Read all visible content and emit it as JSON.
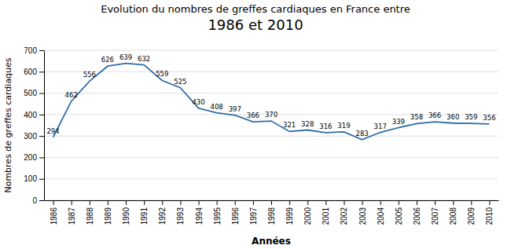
{
  "chart_data": {
    "type": "line",
    "title": "Evolution du nombres de greffes cardiaques en France entre",
    "subtitle": "1986 et 2010",
    "x_label": "Années",
    "y_label": "Nombres de greffes cardiaques",
    "x": [
      1986,
      1987,
      1988,
      1989,
      1990,
      1991,
      1992,
      1993,
      1994,
      1995,
      1996,
      1997,
      1998,
      1999,
      2000,
      2001,
      2002,
      2003,
      2004,
      2005,
      2006,
      2007,
      2008,
      2009,
      2010
    ],
    "values": [
      294,
      462,
      556,
      626,
      639,
      632,
      559,
      525,
      430,
      408,
      397,
      366,
      370,
      321,
      328,
      316,
      319,
      283,
      317,
      339,
      358,
      366,
      360,
      359,
      356
    ],
    "color": "#2E6DA4",
    "xlim": [
      1985.5,
      2010.5
    ],
    "xticks": [
      1986,
      1987,
      1988,
      1989,
      1990,
      1991,
      1992,
      1993,
      1994,
      1995,
      1996,
      1997,
      1998,
      1999,
      2000,
      2001,
      2002,
      2003,
      2004,
      2005,
      2006,
      2007,
      2008,
      2009,
      2010
    ],
    "ylim": [
      0,
      700
    ],
    "yticks": [
      0,
      100,
      200,
      300,
      400,
      500,
      600,
      700
    ],
    "grid": "y",
    "data_labels": true
  }
}
